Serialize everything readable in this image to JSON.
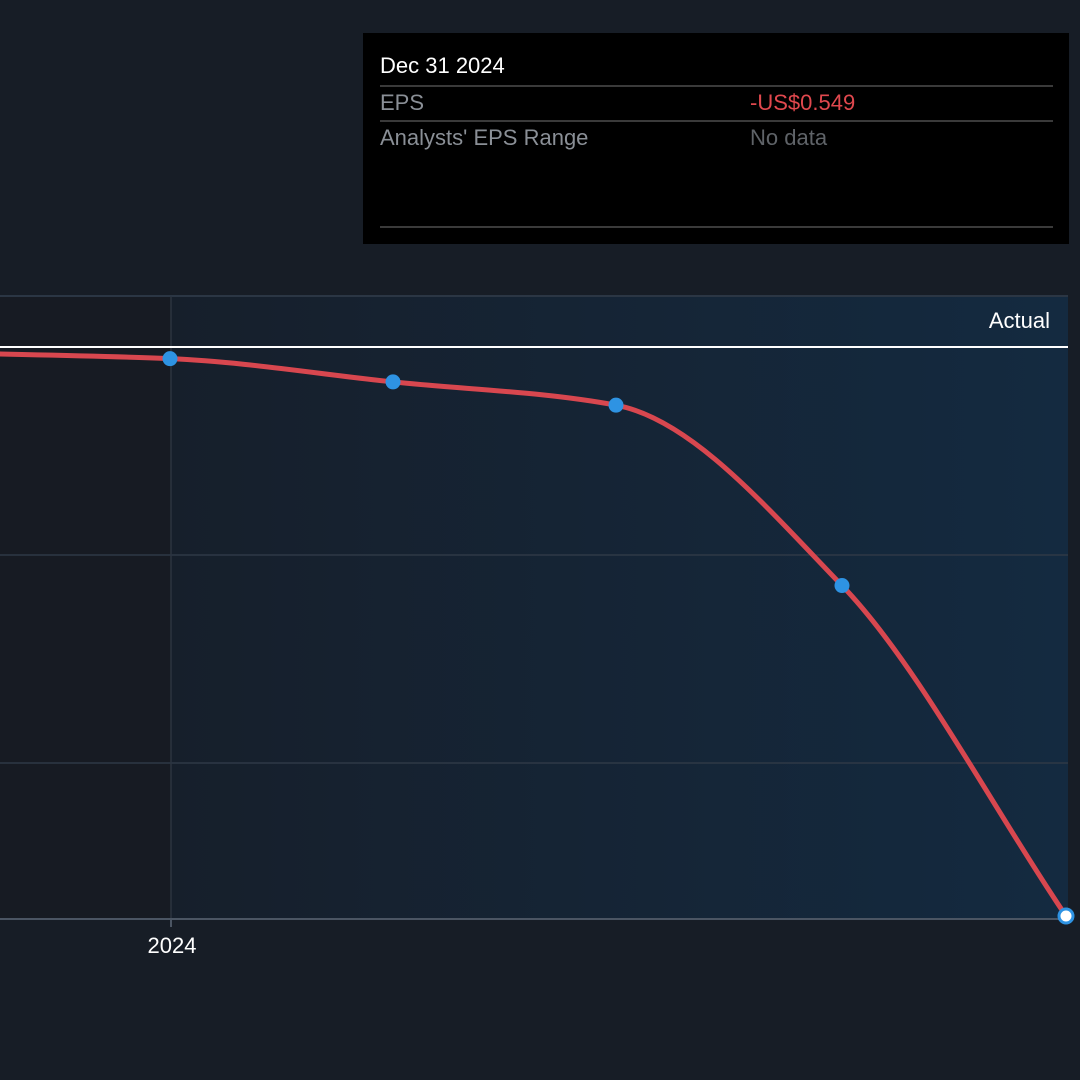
{
  "chart_data": {
    "type": "line",
    "x_ticks": [
      "2024"
    ],
    "series": [
      {
        "x": [
          "Sep 30 2023",
          "Dec 31 2023",
          "Mar 31 2024",
          "Jun 30 2024",
          "Sep 30 2024",
          "Dec 31 2024"
        ],
        "values": [
          -0.065,
          -0.07,
          -0.09,
          -0.11,
          -0.265,
          -0.549
        ]
      }
    ],
    "ylim": [
      -0.549,
      -0.06
    ],
    "grid": true,
    "region_label": "Actual",
    "colors": {
      "line": "#d8474f",
      "point": "#2e93e3",
      "actual_region": "#16283a",
      "past_region": "#171c24"
    }
  },
  "tooltip": {
    "date": "Dec 31 2024",
    "rows": [
      {
        "label": "EPS",
        "value": "-US$0.549",
        "color": "#e0484e"
      },
      {
        "label": "Analysts' EPS Range",
        "value": "No data",
        "color": "#5f6368"
      }
    ]
  }
}
